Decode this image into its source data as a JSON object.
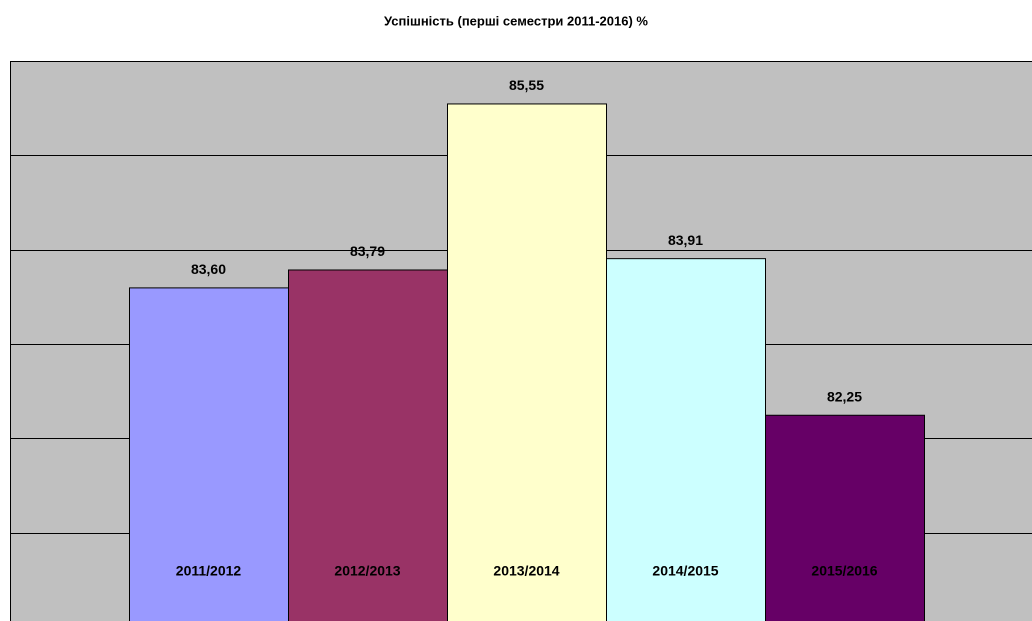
{
  "chart_data": {
    "type": "bar",
    "title": "Успішність (перші семестри 2011-2016) %",
    "categories": [
      "2011/2012",
      "2012/2013",
      "2013/2014",
      "2014/2015",
      "2015/2016"
    ],
    "values": [
      83.6,
      83.79,
      85.55,
      83.91,
      82.25
    ],
    "value_labels": [
      "83,60",
      "83,79",
      "85,55",
      "83,91",
      "82,25"
    ],
    "colors": [
      "#9999ff",
      "#993366",
      "#ffffcc",
      "#ccffff",
      "#660066"
    ],
    "ylim": [
      80,
      86
    ],
    "yticks": [
      81,
      82,
      83,
      84,
      85
    ],
    "grid": true
  }
}
